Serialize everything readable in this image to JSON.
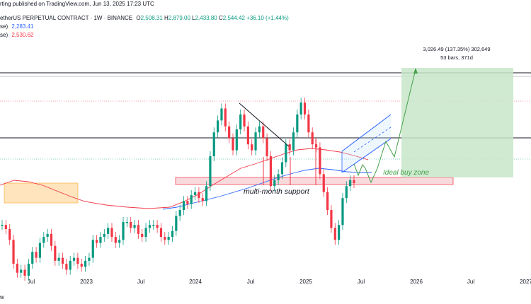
{
  "header": {
    "line1": "etherUS PERPETUAL CONTRACT · 1W · BINANCE",
    "o_label": "O",
    "o_value": "2,508.31",
    "h_label": "H",
    "h_value": "2,879.00",
    "l_label": "L",
    "l_value": "2,433.80",
    "c_label": "C",
    "c_value": "2,544.42",
    "change": "+36.10 (+1.44%)",
    "published": "rting published on TradingView.com, Jun 13, 2025 17:23 UTC",
    "ma1_label": "se)",
    "ma1_value": "2,283.41",
    "ma2_label": "se)",
    "ma2_value": "2,530.62"
  },
  "annotations": {
    "target_line1": "3,026.49 (137.35%) 302,649",
    "target_line2": "53 bars, 371d",
    "support_label": "multi-month support",
    "buy_zone_label": "Ideal buy zone",
    "corner_text": "w"
  },
  "colors": {
    "up": "#089981",
    "down": "#f23645",
    "ma_fast": "#f23645",
    "ma_slow": "#2962ff",
    "zone_fill": "#f8d7da",
    "target_fill": "#c8e6c9",
    "channel": "#2962ff",
    "projection": "#43a047",
    "orange_box": "#ffe0b2"
  },
  "chart_data": {
    "type": "candlestick",
    "x_axis_ticks": [
      "Jul",
      "2023",
      "Jul",
      "2024",
      "Jul",
      "2025",
      "Jul",
      "2026",
      "Jul",
      "2027"
    ],
    "series": [
      {
        "name": "price",
        "values": [
          1850,
          1780,
          1600,
          1200,
          1050,
          1100,
          1000,
          1200,
          1400,
          1300,
          1550,
          1650,
          1700,
          1500,
          1250,
          1300,
          1200,
          1100,
          1250,
          1300,
          1200,
          1150,
          1250,
          1300,
          1600,
          1550,
          1650,
          1700,
          1800,
          1650,
          1550,
          1600,
          1900,
          1900,
          1800,
          1850,
          1700,
          1650,
          1800,
          1850,
          1850,
          1800,
          1650,
          1600,
          1650,
          1750,
          2000,
          2100,
          2250,
          2200,
          2350,
          2400,
          2300,
          2250,
          2500,
          3000,
          3400,
          3600,
          3800,
          3500,
          3300,
          3100,
          3450,
          3700,
          3500,
          3200,
          3100,
          3400,
          3500,
          3300,
          3000,
          2500,
          2600,
          2700,
          2900,
          3200,
          3100,
          3400,
          3700,
          3900,
          3700,
          3400,
          3200,
          3150,
          2700,
          2400,
          2100,
          1800,
          1600,
          1850,
          2300,
          2500,
          2600,
          2550
        ]
      },
      {
        "name": "MA fast",
        "values": [
          1700,
          1600,
          1500,
          1400,
          1350,
          1350,
          1350,
          1400,
          1450,
          1500,
          1550,
          1600,
          1700,
          1750,
          1800,
          1900,
          2000,
          2200,
          2400,
          2600,
          2700,
          2800,
          2850,
          2850,
          2800,
          2700,
          2600,
          2550,
          2500
        ]
      },
      {
        "name": "MA slow",
        "values": [
          1500,
          1500,
          1550,
          1600,
          1650,
          1700,
          1750,
          1800,
          1900,
          2000,
          2100,
          2200,
          2300,
          2400,
          2450,
          2450,
          2400
        ]
      }
    ]
  }
}
